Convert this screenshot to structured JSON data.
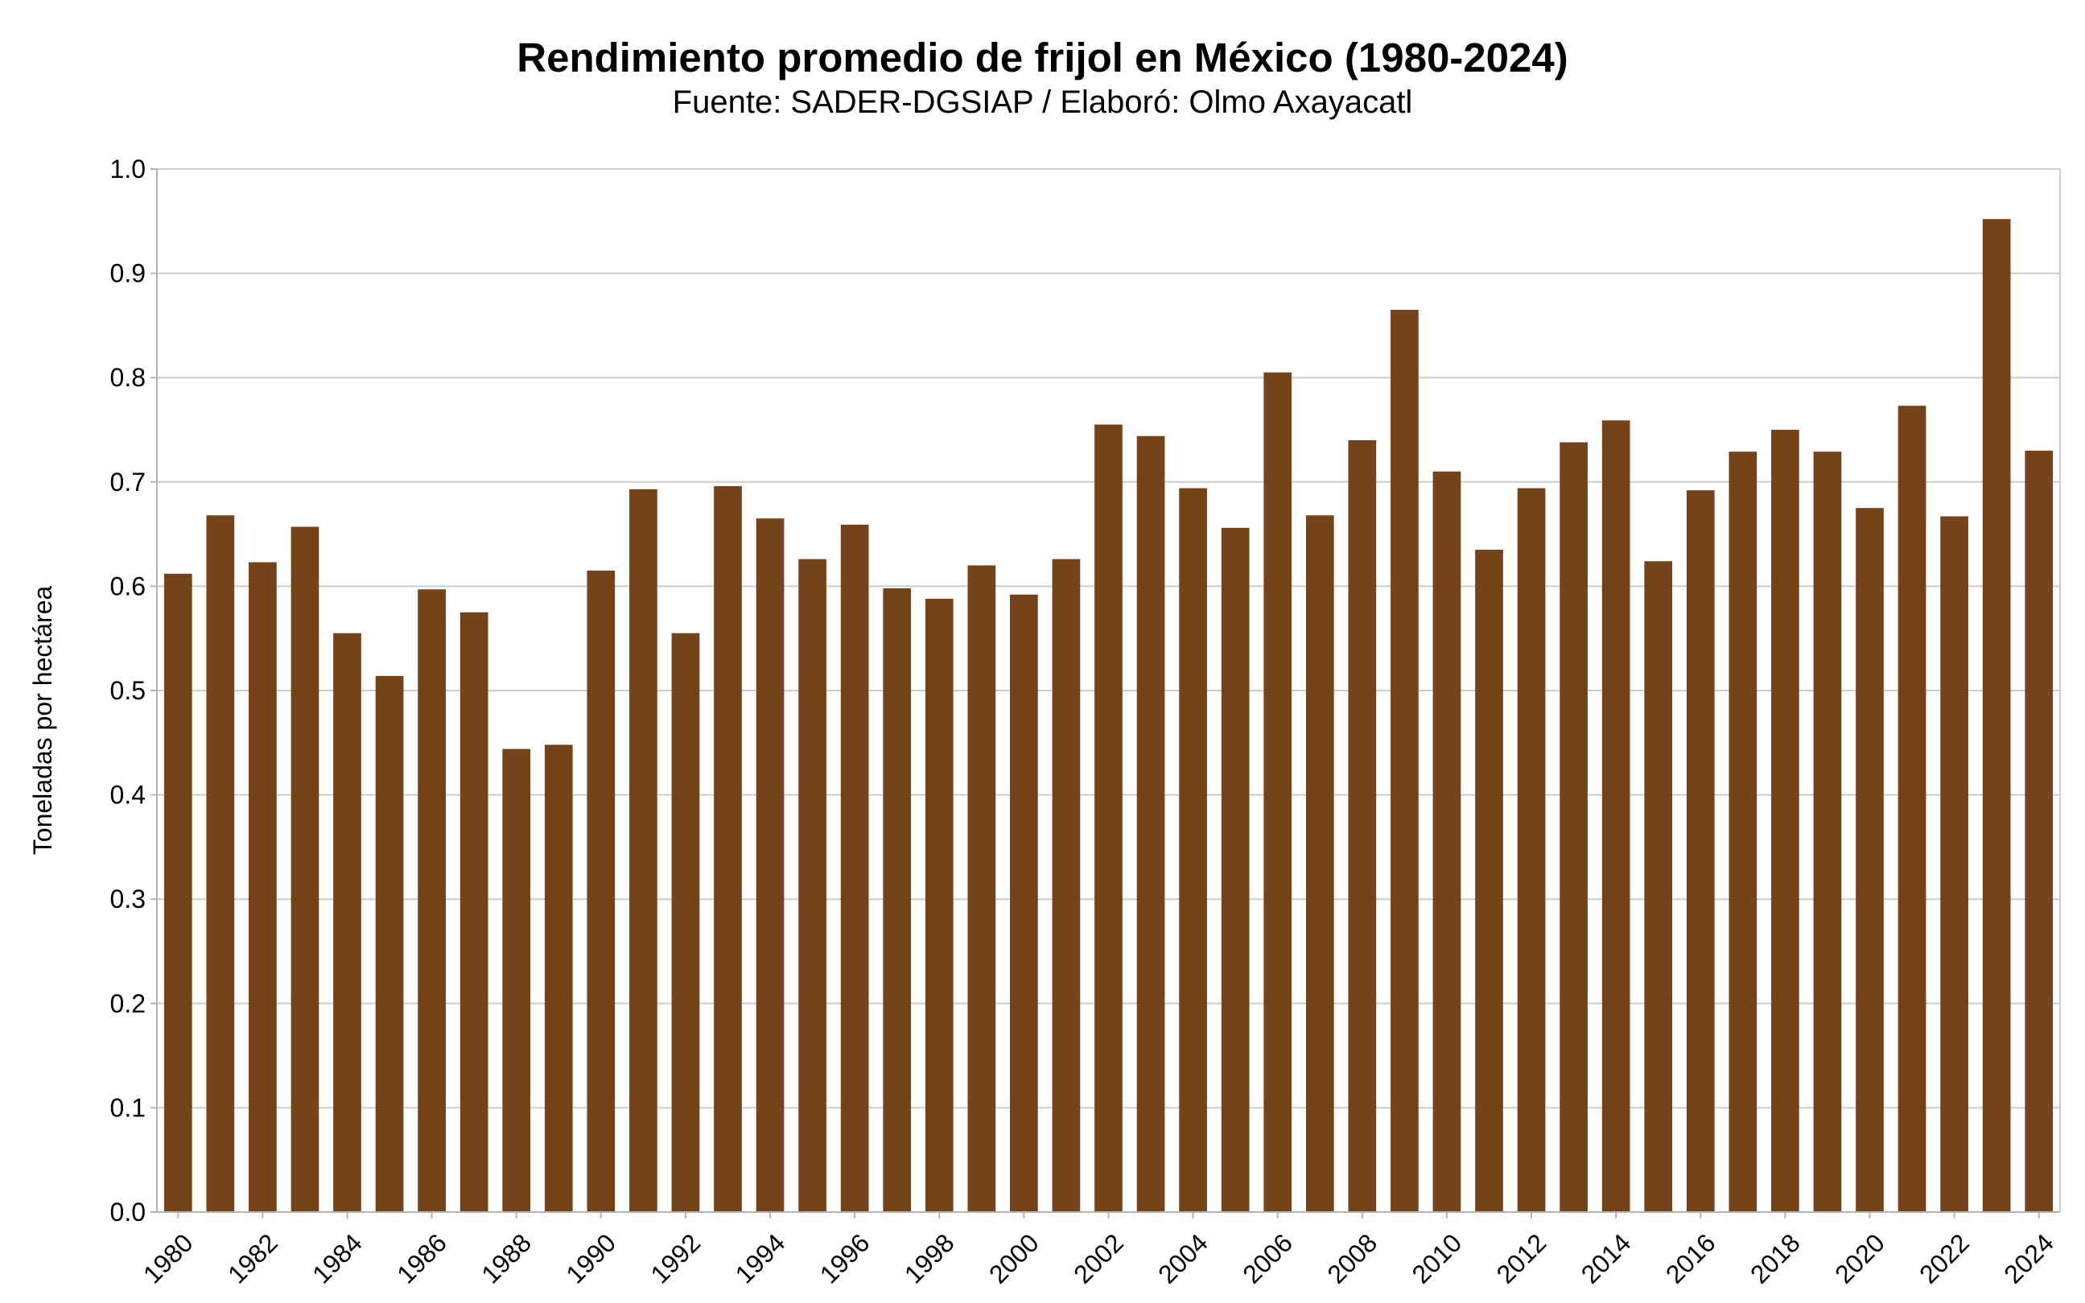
{
  "chart_data": {
    "type": "bar",
    "title": "Rendimiento promedio de frijol en México (1980-2024)",
    "subtitle": "Fuente: SADER-DGSIAP / Elaboró: Olmo Axayacatl",
    "xlabel": "",
    "ylabel": "Toneladas por hectárea",
    "ylim": [
      0,
      1.0
    ],
    "y_ticks": [
      "0.0",
      "0.1",
      "0.2",
      "0.3",
      "0.4",
      "0.5",
      "0.6",
      "0.7",
      "0.8",
      "0.9",
      "1.0"
    ],
    "grid": true,
    "legend": "none",
    "bar_color": "#74431a",
    "categories": [
      "1980",
      "1981",
      "1982",
      "1983",
      "1984",
      "1985",
      "1986",
      "1987",
      "1988",
      "1989",
      "1990",
      "1991",
      "1992",
      "1993",
      "1994",
      "1995",
      "1996",
      "1997",
      "1998",
      "1999",
      "2000",
      "2001",
      "2002",
      "2003",
      "2004",
      "2005",
      "2006",
      "2007",
      "2008",
      "2009",
      "2010",
      "2011",
      "2012",
      "2013",
      "2014",
      "2015",
      "2016",
      "2017",
      "2018",
      "2019",
      "2020",
      "2021",
      "2022",
      "2023",
      "2024"
    ],
    "x_tick_labels": [
      "1980",
      "1982",
      "1984",
      "1986",
      "1988",
      "1990",
      "1992",
      "1994",
      "1996",
      "1998",
      "2000",
      "2002",
      "2004",
      "2006",
      "2008",
      "2010",
      "2012",
      "2014",
      "2016",
      "2018",
      "2020",
      "2022",
      "2024"
    ],
    "values": [
      0.612,
      0.668,
      0.623,
      0.657,
      0.555,
      0.514,
      0.597,
      0.575,
      0.444,
      0.448,
      0.615,
      0.693,
      0.555,
      0.696,
      0.665,
      0.626,
      0.659,
      0.598,
      0.588,
      0.62,
      0.592,
      0.626,
      0.755,
      0.744,
      0.694,
      0.656,
      0.805,
      0.668,
      0.74,
      0.865,
      0.71,
      0.635,
      0.694,
      0.738,
      0.759,
      0.624,
      0.692,
      0.729,
      0.75,
      0.729,
      0.675,
      0.773,
      0.667,
      0.952,
      0.73
    ]
  }
}
